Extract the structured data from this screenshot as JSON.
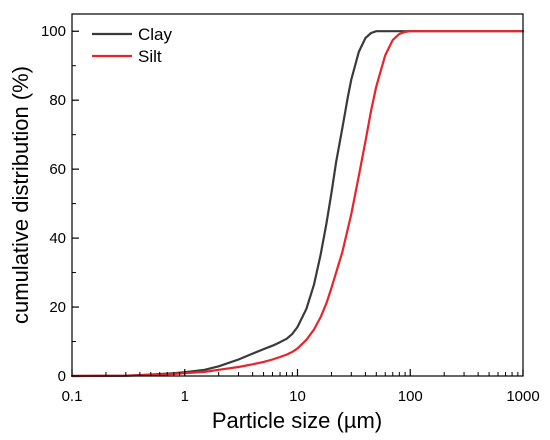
{
  "chart_data": {
    "type": "line",
    "title": "",
    "xlabel": "Particle size (µm)",
    "ylabel": "cumulative distribution (%)",
    "x_scale": "log",
    "xlim": [
      0.1,
      1000
    ],
    "ylim": [
      0,
      105
    ],
    "x_ticks": [
      0.1,
      1,
      10,
      100,
      1000
    ],
    "x_tick_labels": [
      "0.1",
      "1",
      "10",
      "100",
      "1000"
    ],
    "y_ticks": [
      0,
      20,
      40,
      60,
      80,
      100
    ],
    "y_tick_labels": [
      "0",
      "20",
      "40",
      "60",
      "80",
      "100"
    ],
    "grid": false,
    "legend_position": "top-left",
    "series": [
      {
        "name": "Clay",
        "color": "#3a3a3a",
        "x": [
          0.1,
          0.3,
          0.5,
          0.8,
          1,
          1.5,
          2,
          3,
          4,
          5,
          6,
          7,
          8,
          9,
          10,
          12,
          14,
          16,
          18,
          20,
          22,
          25,
          28,
          30,
          35,
          40,
          45,
          50,
          60,
          80,
          100,
          200,
          500,
          1000
        ],
        "y": [
          0,
          0.1,
          0.4,
          0.8,
          1.1,
          1.8,
          2.8,
          4.8,
          6.5,
          7.8,
          8.8,
          9.8,
          10.8,
          12.2,
          14.2,
          19.5,
          26.5,
          35,
          44,
          53,
          62,
          72,
          81,
          86,
          94,
          98,
          99.5,
          100,
          100,
          100,
          100,
          100,
          100,
          100
        ]
      },
      {
        "name": "Silt",
        "color": "#e8242a",
        "x": [
          0.1,
          0.3,
          0.5,
          0.8,
          1,
          1.5,
          2,
          3,
          4,
          5,
          6,
          7,
          8,
          9,
          10,
          12,
          14,
          16,
          18,
          20,
          25,
          30,
          35,
          40,
          45,
          50,
          60,
          70,
          80,
          90,
          100,
          200,
          500,
          1000
        ],
        "y": [
          0,
          0.1,
          0.3,
          0.6,
          0.8,
          1.2,
          1.8,
          2.6,
          3.4,
          4.1,
          4.8,
          5.5,
          6.2,
          7.0,
          8.0,
          10.5,
          13.5,
          17,
          21,
          25.5,
          36,
          47,
          58,
          68,
          77,
          84,
          93,
          97.5,
          99.2,
          99.8,
          100,
          100,
          100,
          100
        ]
      }
    ]
  }
}
